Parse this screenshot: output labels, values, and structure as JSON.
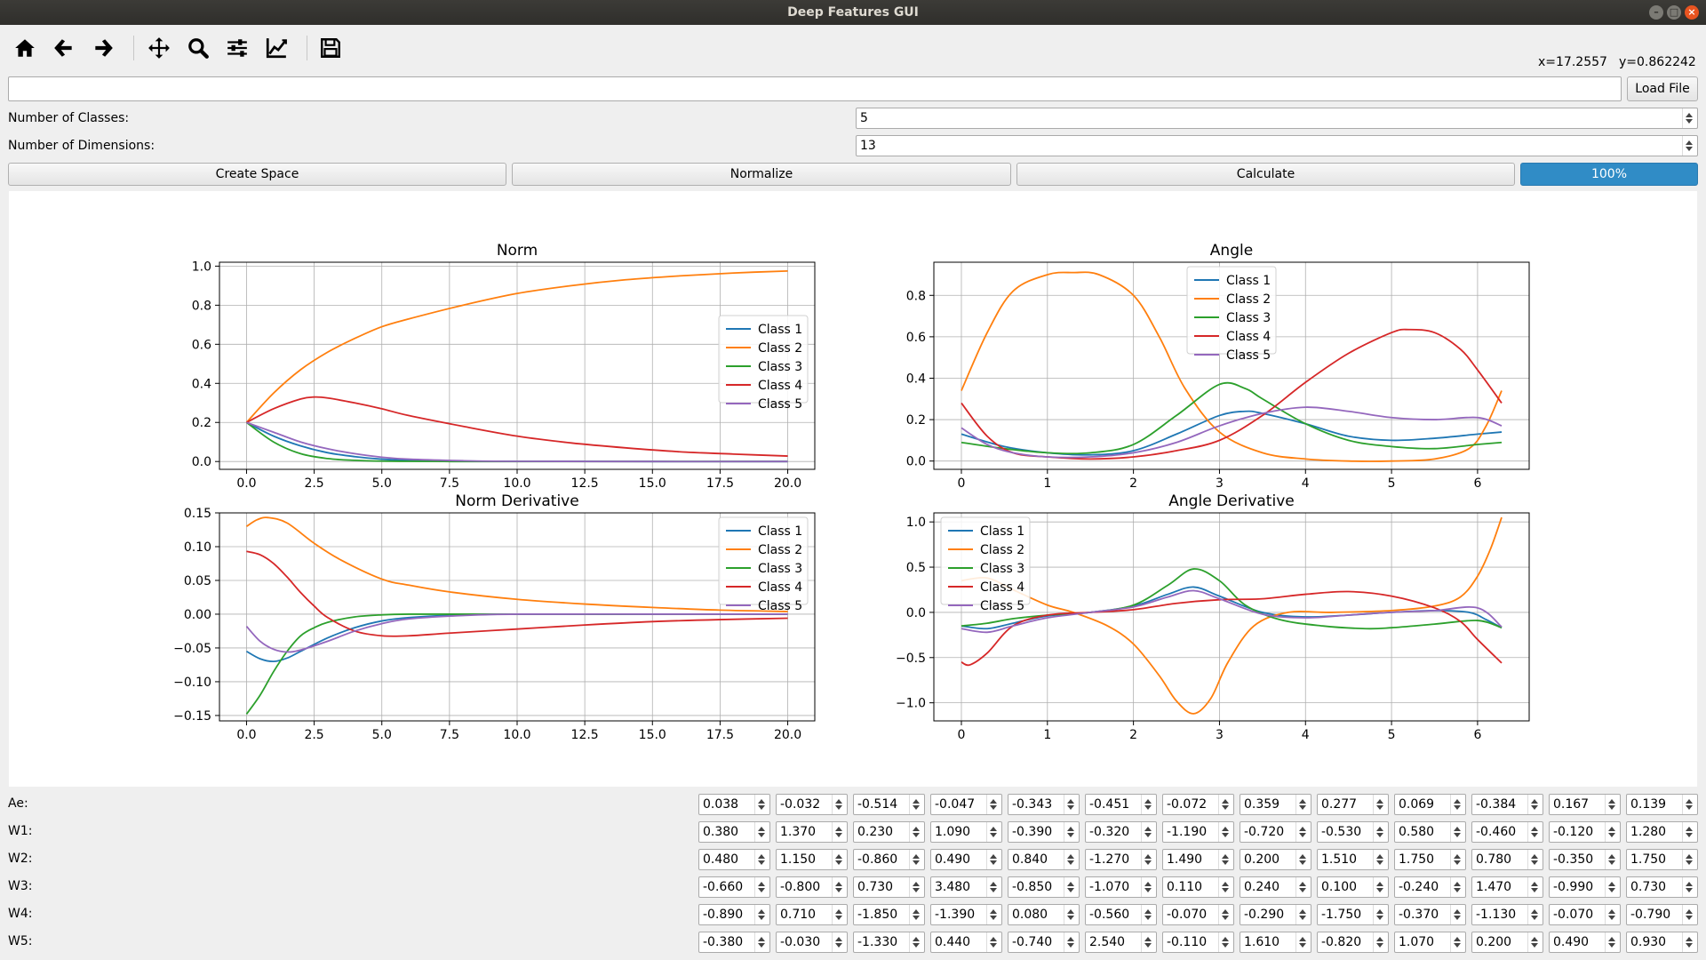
{
  "window": {
    "title": "Deep Features GUI"
  },
  "toolbar": {
    "coord_x": "x=17.2557",
    "coord_y": "y=0.862242"
  },
  "file": {
    "path_value": "",
    "load_label": "Load File"
  },
  "settings": {
    "classes_label": "Number of Classes:",
    "classes_value": "5",
    "dims_label": "Number of Dimensions:",
    "dims_value": "13"
  },
  "actions": {
    "create_label": "Create Space",
    "normalize_label": "Normalize",
    "calculate_label": "Calculate",
    "progress_text": "100%",
    "progress": 100
  },
  "colors": {
    "c1": "#1f77b4",
    "c2": "#ff7f0e",
    "c3": "#2ca02c",
    "c4": "#d62728",
    "c5": "#9467bd",
    "progress": "#308cc6"
  },
  "chart_data": [
    {
      "type": "line",
      "title": "Norm",
      "xlim": [
        -1,
        21
      ],
      "ylim": [
        -0.04,
        1.02
      ],
      "grid": true,
      "legend": "center-right",
      "xticks": [
        "0.0",
        "2.5",
        "5.0",
        "7.5",
        "10.0",
        "12.5",
        "15.0",
        "17.5",
        "20.0"
      ],
      "xtick_values": [
        0,
        2.5,
        5,
        7.5,
        10,
        12.5,
        15,
        17.5,
        20
      ],
      "yticks": [
        "0.0",
        "0.2",
        "0.4",
        "0.6",
        "0.8",
        "1.0"
      ],
      "ytick_values": [
        0,
        0.2,
        0.4,
        0.6,
        0.8,
        1.0
      ],
      "series": [
        {
          "name": "Class 1",
          "x": [
            0,
            1,
            2,
            3,
            4,
            5,
            6,
            8,
            10,
            15,
            20
          ],
          "y": [
            0.2,
            0.13,
            0.08,
            0.045,
            0.025,
            0.012,
            0.006,
            0.002,
            0.001,
            0.0,
            0.0
          ]
        },
        {
          "name": "Class 2",
          "x": [
            0,
            1,
            2,
            3,
            4,
            5,
            6,
            8,
            10,
            12,
            14,
            16,
            18,
            20
          ],
          "y": [
            0.2,
            0.35,
            0.47,
            0.56,
            0.63,
            0.69,
            0.73,
            0.8,
            0.86,
            0.9,
            0.93,
            0.95,
            0.965,
            0.975
          ]
        },
        {
          "name": "Class 3",
          "x": [
            0,
            1,
            2,
            3,
            4,
            5,
            6,
            8,
            10,
            15,
            20
          ],
          "y": [
            0.2,
            0.1,
            0.04,
            0.015,
            0.006,
            0.002,
            0.001,
            0.0,
            0.0,
            0.0,
            0.0
          ]
        },
        {
          "name": "Class 4",
          "x": [
            0,
            1,
            2,
            2.5,
            3,
            4,
            5,
            6,
            8,
            10,
            12,
            14,
            16,
            18,
            20
          ],
          "y": [
            0.2,
            0.27,
            0.32,
            0.33,
            0.325,
            0.3,
            0.27,
            0.235,
            0.18,
            0.13,
            0.095,
            0.07,
            0.05,
            0.038,
            0.028
          ]
        },
        {
          "name": "Class 5",
          "x": [
            0,
            1,
            2,
            3,
            4,
            5,
            6,
            8,
            10,
            15,
            20
          ],
          "y": [
            0.2,
            0.15,
            0.1,
            0.065,
            0.04,
            0.022,
            0.012,
            0.004,
            0.001,
            0.0,
            0.0
          ]
        }
      ]
    },
    {
      "type": "line",
      "title": "Angle",
      "xlim": [
        -0.32,
        6.6
      ],
      "ylim": [
        -0.04,
        0.96
      ],
      "grid": true,
      "legend": "top-center",
      "xticks": [
        "0",
        "1",
        "2",
        "3",
        "4",
        "5",
        "6"
      ],
      "xtick_values": [
        0,
        1,
        2,
        3,
        4,
        5,
        6
      ],
      "yticks": [
        "0.0",
        "0.2",
        "0.4",
        "0.6",
        "0.8"
      ],
      "ytick_values": [
        0,
        0.2,
        0.4,
        0.6,
        0.8
      ],
      "series": [
        {
          "name": "Class 1",
          "x": [
            0,
            0.5,
            1,
            1.5,
            2,
            2.5,
            3,
            3.3,
            3.5,
            4,
            4.5,
            5,
            5.5,
            6,
            6.28
          ],
          "y": [
            0.13,
            0.07,
            0.04,
            0.03,
            0.05,
            0.13,
            0.22,
            0.24,
            0.23,
            0.18,
            0.12,
            0.1,
            0.11,
            0.13,
            0.14
          ]
        },
        {
          "name": "Class 2",
          "x": [
            0,
            0.3,
            0.6,
            1,
            1.3,
            1.6,
            2,
            2.3,
            2.6,
            3,
            3.5,
            4,
            4.5,
            5,
            5.5,
            5.9,
            6.1,
            6.28
          ],
          "y": [
            0.34,
            0.62,
            0.82,
            0.9,
            0.91,
            0.9,
            0.8,
            0.6,
            0.35,
            0.14,
            0.04,
            0.01,
            0.0,
            0.0,
            0.01,
            0.06,
            0.17,
            0.34
          ]
        },
        {
          "name": "Class 3",
          "x": [
            0,
            0.5,
            1,
            1.5,
            2,
            2.5,
            3,
            3.3,
            3.5,
            4,
            4.5,
            5,
            5.5,
            6,
            6.28
          ],
          "y": [
            0.09,
            0.06,
            0.04,
            0.04,
            0.08,
            0.22,
            0.37,
            0.35,
            0.3,
            0.18,
            0.1,
            0.07,
            0.06,
            0.08,
            0.09
          ]
        },
        {
          "name": "Class 4",
          "x": [
            0,
            0.3,
            0.6,
            1,
            1.5,
            2,
            2.5,
            3,
            3.5,
            4,
            4.5,
            5,
            5.2,
            5.5,
            5.8,
            6,
            6.28
          ],
          "y": [
            0.28,
            0.12,
            0.04,
            0.02,
            0.01,
            0.02,
            0.05,
            0.1,
            0.22,
            0.38,
            0.52,
            0.62,
            0.635,
            0.62,
            0.54,
            0.44,
            0.28
          ]
        },
        {
          "name": "Class 5",
          "x": [
            0,
            0.3,
            0.6,
            1,
            1.5,
            2,
            2.5,
            3,
            3.5,
            4,
            4.5,
            5,
            5.5,
            6,
            6.28
          ],
          "y": [
            0.16,
            0.08,
            0.04,
            0.02,
            0.02,
            0.04,
            0.09,
            0.17,
            0.23,
            0.26,
            0.24,
            0.21,
            0.2,
            0.21,
            0.17
          ]
        }
      ]
    },
    {
      "type": "line",
      "title": "Norm Derivative",
      "xlim": [
        -1,
        21
      ],
      "ylim": [
        -0.158,
        0.15
      ],
      "grid": true,
      "legend": "top-right",
      "xticks": [
        "0.0",
        "2.5",
        "5.0",
        "7.5",
        "10.0",
        "12.5",
        "15.0",
        "17.5",
        "20.0"
      ],
      "xtick_values": [
        0,
        2.5,
        5,
        7.5,
        10,
        12.5,
        15,
        17.5,
        20
      ],
      "yticks": [
        "0.15",
        "0.10",
        "0.05",
        "0.00",
        "−0.05",
        "−0.10",
        "−0.15"
      ],
      "ytick_values": [
        0.15,
        0.1,
        0.05,
        0,
        -0.05,
        -0.1,
        -0.15
      ],
      "series": [
        {
          "name": "Class 1",
          "x": [
            0,
            0.5,
            1,
            1.5,
            2,
            3,
            4,
            5,
            6,
            8,
            10,
            15,
            20
          ],
          "y": [
            -0.055,
            -0.066,
            -0.07,
            -0.065,
            -0.055,
            -0.035,
            -0.02,
            -0.01,
            -0.005,
            -0.001,
            0.0,
            0.0,
            0.0
          ]
        },
        {
          "name": "Class 2",
          "x": [
            0,
            0.4,
            0.8,
            1.5,
            2.5,
            3.5,
            5,
            6,
            7.5,
            10,
            12.5,
            15,
            17.5,
            20
          ],
          "y": [
            0.13,
            0.14,
            0.143,
            0.135,
            0.105,
            0.08,
            0.052,
            0.043,
            0.033,
            0.022,
            0.015,
            0.01,
            0.006,
            0.004
          ]
        },
        {
          "name": "Class 3",
          "x": [
            0,
            0.5,
            1,
            1.5,
            2,
            2.5,
            3,
            4,
            5,
            6,
            8,
            10,
            15,
            20
          ],
          "y": [
            -0.148,
            -0.12,
            -0.085,
            -0.055,
            -0.032,
            -0.02,
            -0.012,
            -0.004,
            -0.001,
            0.0,
            0.0,
            0.0,
            0.0,
            0.0
          ]
        },
        {
          "name": "Class 4",
          "x": [
            0,
            0.5,
            1,
            1.5,
            2,
            2.5,
            3,
            4,
            5,
            6,
            7.5,
            10,
            12.5,
            15,
            17.5,
            20
          ],
          "y": [
            0.093,
            0.088,
            0.075,
            0.055,
            0.032,
            0.012,
            -0.005,
            -0.025,
            -0.032,
            -0.032,
            -0.028,
            -0.022,
            -0.016,
            -0.011,
            -0.008,
            -0.006
          ]
        },
        {
          "name": "Class 5",
          "x": [
            0,
            0.5,
            1,
            1.5,
            2,
            3,
            4,
            5,
            6,
            8,
            10,
            15,
            20
          ],
          "y": [
            -0.018,
            -0.04,
            -0.052,
            -0.056,
            -0.053,
            -0.04,
            -0.025,
            -0.014,
            -0.007,
            -0.002,
            0.0,
            0.0,
            0.0
          ]
        }
      ]
    },
    {
      "type": "line",
      "title": "Angle Derivative",
      "xlim": [
        -0.32,
        6.6
      ],
      "ylim": [
        -1.2,
        1.1
      ],
      "grid": true,
      "legend": "top-left",
      "xticks": [
        "0",
        "1",
        "2",
        "3",
        "4",
        "5",
        "6"
      ],
      "xtick_values": [
        0,
        1,
        2,
        3,
        4,
        5,
        6
      ],
      "yticks": [
        "1.0",
        "0.5",
        "0.0",
        "−0.5",
        "−1.0"
      ],
      "ytick_values": [
        1,
        0.5,
        0,
        -0.5,
        -1
      ],
      "series": [
        {
          "name": "Class 1",
          "x": [
            0,
            0.3,
            0.6,
            1,
            1.5,
            2,
            2.4,
            2.7,
            3,
            3.5,
            4,
            4.5,
            5,
            5.5,
            5.9,
            6.1,
            6.28
          ],
          "y": [
            -0.15,
            -0.18,
            -0.12,
            -0.04,
            0.0,
            0.07,
            0.2,
            0.28,
            0.18,
            0.0,
            -0.05,
            -0.03,
            0.0,
            0.02,
            0.0,
            -0.08,
            -0.17
          ]
        },
        {
          "name": "Class 2",
          "x": [
            0,
            0.3,
            0.6,
            1,
            1.3,
            1.7,
            2,
            2.3,
            2.5,
            2.7,
            2.9,
            3.1,
            3.4,
            3.8,
            4.3,
            5,
            5.5,
            5.8,
            6,
            6.15,
            6.28
          ],
          "y": [
            0.35,
            0.38,
            0.25,
            0.08,
            0.0,
            -0.15,
            -0.35,
            -0.7,
            -0.98,
            -1.12,
            -0.95,
            -0.55,
            -0.15,
            0.0,
            0.0,
            0.02,
            0.07,
            0.17,
            0.4,
            0.7,
            1.05
          ]
        },
        {
          "name": "Class 3",
          "x": [
            0,
            0.3,
            0.6,
            1,
            1.5,
            2,
            2.4,
            2.7,
            3,
            3.3,
            3.7,
            4.2,
            4.7,
            5,
            5.5,
            6,
            6.28
          ],
          "y": [
            -0.15,
            -0.12,
            -0.07,
            -0.03,
            0.0,
            0.08,
            0.3,
            0.48,
            0.35,
            0.08,
            -0.08,
            -0.15,
            -0.18,
            -0.17,
            -0.13,
            -0.09,
            -0.17
          ]
        },
        {
          "name": "Class 4",
          "x": [
            0,
            0.1,
            0.3,
            0.6,
            1,
            1.5,
            2,
            2.5,
            3,
            3.5,
            4,
            4.5,
            5,
            5.5,
            5.8,
            6,
            6.28
          ],
          "y": [
            -0.55,
            -0.58,
            -0.45,
            -0.15,
            -0.03,
            0.0,
            0.03,
            0.1,
            0.14,
            0.15,
            0.2,
            0.23,
            0.18,
            0.05,
            -0.1,
            -0.3,
            -0.56
          ]
        },
        {
          "name": "Class 5",
          "x": [
            0,
            0.3,
            0.6,
            1,
            1.5,
            2,
            2.4,
            2.7,
            3,
            3.5,
            4,
            4.5,
            5,
            5.5,
            6,
            6.28
          ],
          "y": [
            -0.18,
            -0.22,
            -0.15,
            -0.06,
            0.0,
            0.06,
            0.17,
            0.24,
            0.15,
            -0.02,
            -0.06,
            -0.03,
            0.0,
            0.02,
            0.05,
            -0.16
          ]
        }
      ]
    }
  ],
  "weights": {
    "rows": [
      {
        "label": "Ae:",
        "values": [
          "0.038",
          "-0.032",
          "-0.514",
          "-0.047",
          "-0.343",
          "-0.451",
          "-0.072",
          "0.359",
          "0.277",
          "0.069",
          "-0.384",
          "0.167",
          "0.139"
        ]
      },
      {
        "label": "W1:",
        "values": [
          "0.380",
          "1.370",
          "0.230",
          "1.090",
          "-0.390",
          "-0.320",
          "-1.190",
          "-0.720",
          "-0.530",
          "0.580",
          "-0.460",
          "-0.120",
          "1.280"
        ]
      },
      {
        "label": "W2:",
        "values": [
          "0.480",
          "1.150",
          "-0.860",
          "0.490",
          "0.840",
          "-1.270",
          "1.490",
          "0.200",
          "1.510",
          "1.750",
          "0.780",
          "-0.350",
          "1.750"
        ]
      },
      {
        "label": "W3:",
        "values": [
          "-0.660",
          "-0.800",
          "0.730",
          "3.480",
          "-0.850",
          "-1.070",
          "0.110",
          "0.240",
          "0.100",
          "-0.240",
          "1.470",
          "-0.990",
          "0.730"
        ]
      },
      {
        "label": "W4:",
        "values": [
          "-0.890",
          "0.710",
          "-1.850",
          "-1.390",
          "0.080",
          "-0.560",
          "-0.070",
          "-0.290",
          "-1.750",
          "-0.370",
          "-1.130",
          "-0.070",
          "-0.790"
        ]
      },
      {
        "label": "W5:",
        "values": [
          "-0.380",
          "-0.030",
          "-1.330",
          "0.440",
          "-0.740",
          "2.540",
          "-0.110",
          "1.610",
          "-0.820",
          "1.070",
          "0.200",
          "0.490",
          "0.930"
        ]
      }
    ]
  }
}
